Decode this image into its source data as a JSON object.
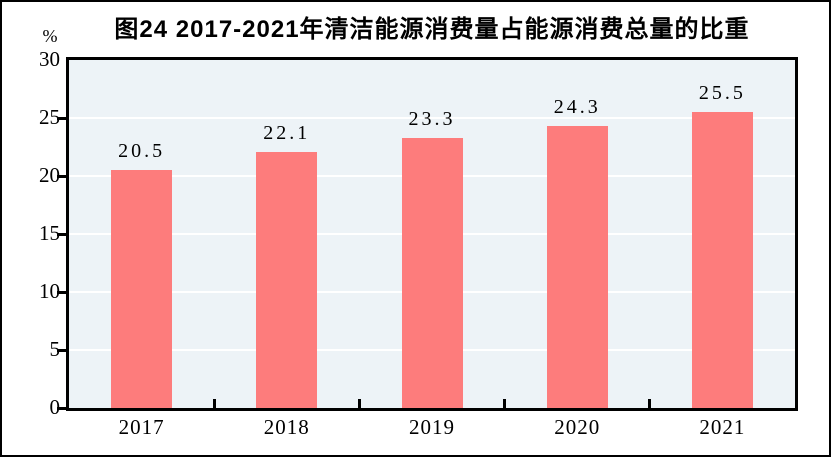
{
  "chart_data": {
    "type": "bar",
    "title": "图24  2017-2021年清洁能源消费量占能源消费总量的比重",
    "ylabel": "%",
    "xlabel": "",
    "categories": [
      "2017",
      "2018",
      "2019",
      "2020",
      "2021"
    ],
    "values": [
      20.5,
      22.1,
      23.3,
      24.3,
      25.5
    ],
    "ylim": [
      0,
      30
    ],
    "yticks": [
      0,
      5,
      10,
      15,
      20,
      25,
      30
    ],
    "gridlines": [
      5,
      10,
      15,
      20,
      25
    ],
    "grid": true,
    "legend_position": "none",
    "colors": {
      "bar": "#FD7C7C",
      "plot_background": "#EDF3F7",
      "gridline": "#FFFFFF",
      "axis": "#000000",
      "text": "#000000"
    }
  }
}
